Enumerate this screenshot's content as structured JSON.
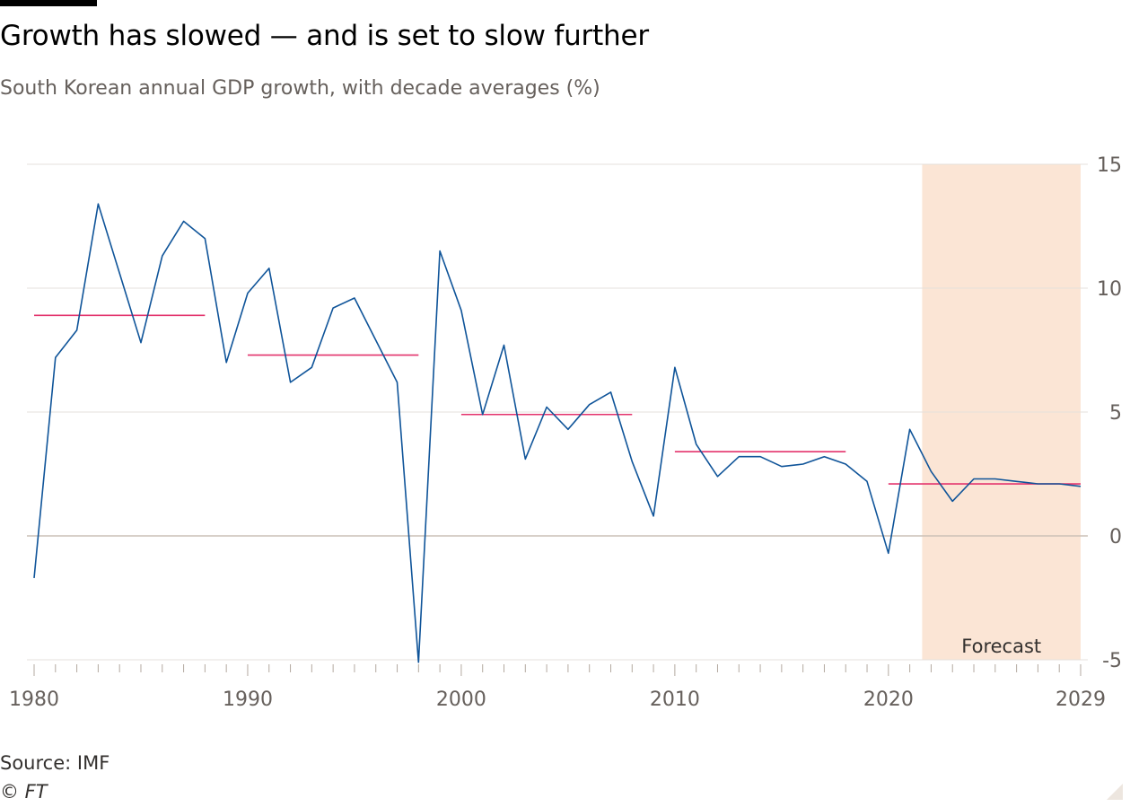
{
  "header": {
    "title": "Growth has slowed — and is set to slow further",
    "subtitle": "South Korean annual GDP growth, with decade averages (%)"
  },
  "footer": {
    "source": "Source: IMF",
    "copyright": "© FT"
  },
  "colors": {
    "line": "#0f5499",
    "average": "#e3336c",
    "forecast_band": "#fbe5d5",
    "grid": "#e6e1dc",
    "zero_line": "#ccc1b7",
    "tick_text": "#66605c"
  },
  "chart_data": {
    "type": "line",
    "x": [
      1980,
      1981,
      1982,
      1983,
      1984,
      1985,
      1986,
      1987,
      1988,
      1989,
      1990,
      1991,
      1992,
      1993,
      1994,
      1995,
      1996,
      1997,
      1998,
      1999,
      2000,
      2001,
      2002,
      2003,
      2004,
      2005,
      2006,
      2007,
      2008,
      2009,
      2010,
      2011,
      2012,
      2013,
      2014,
      2015,
      2016,
      2017,
      2018,
      2019,
      2020,
      2021,
      2022,
      2023,
      2024,
      2025,
      2026,
      2027,
      2028,
      2029
    ],
    "series": [
      {
        "values": [
          -1.7,
          7.2,
          8.3,
          13.4,
          10.6,
          7.8,
          11.3,
          12.7,
          12.0,
          7.0,
          9.8,
          10.8,
          6.2,
          6.8,
          9.2,
          9.6,
          7.9,
          6.2,
          -5.1,
          11.5,
          9.1,
          4.9,
          7.7,
          3.1,
          5.2,
          4.3,
          5.3,
          5.8,
          3.0,
          0.8,
          6.8,
          3.7,
          2.4,
          3.2,
          3.2,
          2.8,
          2.9,
          3.2,
          2.9,
          2.2,
          -0.7,
          4.3,
          2.6,
          1.4,
          2.3,
          2.3,
          2.2,
          2.1,
          2.1,
          2.0
        ]
      }
    ],
    "decade_averages": [
      {
        "x_start": 1980,
        "x_end": 1988,
        "value": 8.9
      },
      {
        "x_start": 1990,
        "x_end": 1998,
        "value": 7.3
      },
      {
        "x_start": 2000,
        "x_end": 2008,
        "value": 4.9
      },
      {
        "x_start": 2010,
        "x_end": 2018,
        "value": 3.4
      },
      {
        "x_start": 2020,
        "x_end": 2029,
        "value": 2.1
      }
    ],
    "forecast": {
      "x_start": 2022,
      "x_end": 2029,
      "label": "Forecast"
    },
    "xlim": [
      1980,
      2029
    ],
    "ylim": [
      -5,
      15
    ],
    "y_ticks": [
      15,
      10,
      5,
      0,
      -5
    ],
    "x_tick_labels": [
      1980,
      1990,
      2000,
      2010,
      2020,
      2029
    ],
    "xlabel": "",
    "ylabel": "",
    "grid": true,
    "y_axis_side": "right"
  }
}
